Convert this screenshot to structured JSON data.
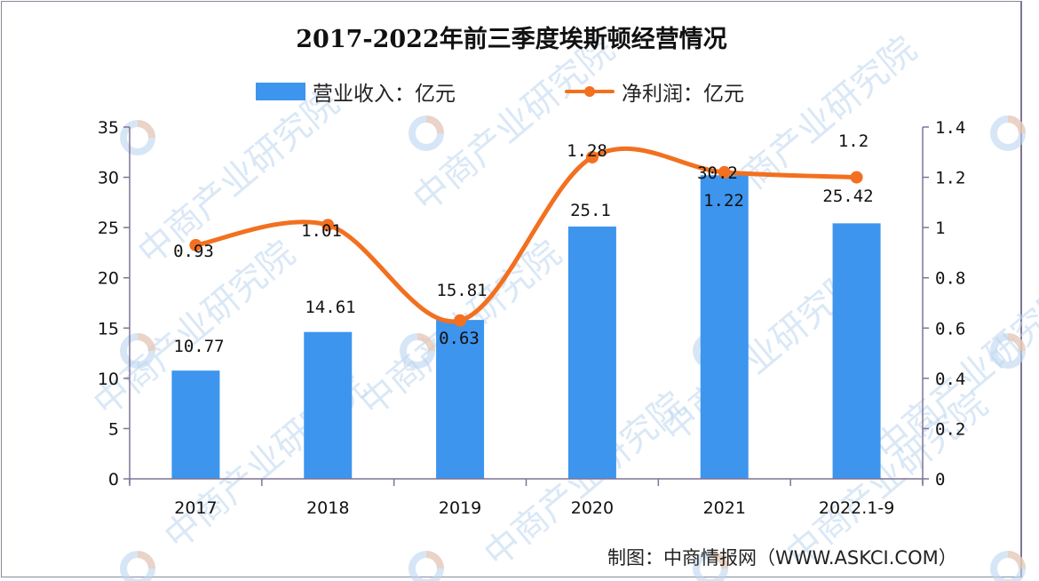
{
  "title": "2017-2022年前三季度埃斯顿经营情况",
  "legend": {
    "bar_label": "营业收入：亿元",
    "line_label": "净利润：亿元"
  },
  "source": "制图：中商情报网（WWW.ASKCI.COM）",
  "watermark": "中商产业研究院",
  "colors": {
    "bar": "#3d95ee",
    "line": "#f2701f",
    "axis": "#7f7496"
  },
  "chart_data": {
    "type": "bar+line",
    "title": "2017-2022年前三季度埃斯顿经营情况",
    "categories": [
      "2017",
      "2018",
      "2019",
      "2020",
      "2021",
      "2022.1-9"
    ],
    "series": [
      {
        "name": "营业收入：亿元",
        "type": "bar",
        "axis": "left",
        "values": [
          10.77,
          14.61,
          15.81,
          25.1,
          30.2,
          25.42
        ]
      },
      {
        "name": "净利润：亿元",
        "type": "line",
        "axis": "right",
        "smooth": true,
        "values": [
          0.93,
          1.01,
          0.63,
          1.28,
          1.22,
          1.2
        ]
      }
    ],
    "left_axis": {
      "min": 0,
      "max": 35,
      "ticks": [
        "0",
        "5",
        "10",
        "15",
        "20",
        "25",
        "30",
        "35"
      ]
    },
    "right_axis": {
      "min": 0,
      "max": 1.4,
      "ticks": [
        "0",
        "0.2",
        "0.4",
        "0.6",
        "0.8",
        "1",
        "1.2",
        "1.4"
      ]
    },
    "xlabel": "",
    "ylabel": "",
    "legend_position": "top",
    "grid": false
  }
}
